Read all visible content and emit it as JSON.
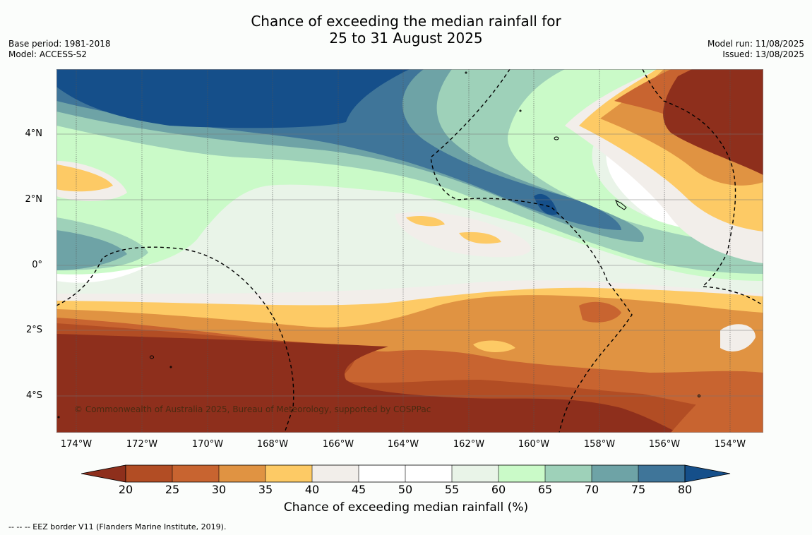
{
  "title": {
    "line1": "Chance of exceeding the median rainfall for",
    "line2": "25 to 31 August 2025"
  },
  "meta_left": {
    "base_period": "Base period: 1981-2018",
    "model": "Model: ACCESS-S2"
  },
  "meta_right": {
    "model_run": "Model run: 11/08/2025",
    "issued": "Issued: 13/08/2025"
  },
  "map": {
    "lat_labels": [
      "4°N",
      "2°N",
      "0°",
      "2°S",
      "4°S"
    ],
    "lon_labels": [
      "174°W",
      "172°W",
      "170°W",
      "168°W",
      "166°W",
      "164°W",
      "162°W",
      "160°W",
      "158°W",
      "156°W",
      "154°W"
    ],
    "copyright": "© Commonwealth of Australia 2025, Bureau of Meteorology, supported by COSPPac"
  },
  "colorbar": {
    "ticks": [
      "20",
      "25",
      "30",
      "35",
      "40",
      "45",
      "50",
      "55",
      "60",
      "65",
      "70",
      "75",
      "80"
    ],
    "label": "Chance of exceeding median rainfall (%)",
    "colors": {
      "under_20": "#8e2f1c",
      "20-25": "#b24d24",
      "25-30": "#c86430",
      "30-35": "#e09342",
      "35-40": "#fdca65",
      "40-45": "#f2eeea",
      "45-50": "#ffffff",
      "50-55": "#ffffff",
      "55-60": "#e9f4e8",
      "60-65": "#cafac8",
      "65-70": "#9ed1b9",
      "70-75": "#6ea3a6",
      "75-80": "#3f7599",
      "over_80": "#154f8a"
    }
  },
  "footnote": "--  --  -- EEZ border V11 (Flanders Marine Institute, 2019)."
}
